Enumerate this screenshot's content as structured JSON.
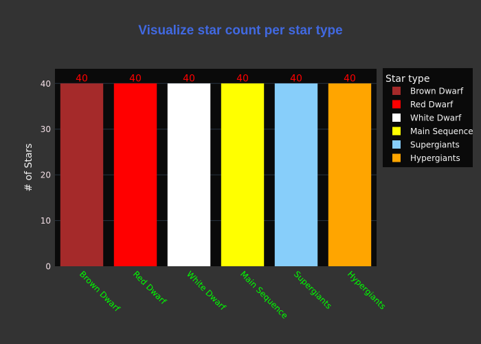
{
  "chart_data": {
    "type": "bar",
    "title": "Visualize star count per star type",
    "xlabel": "",
    "ylabel": "# of Stars",
    "categories": [
      "Brown Dwarf",
      "Red Dwarf",
      "White Dwarf",
      "Main Sequence",
      "Supergiants",
      "Hypergiants"
    ],
    "values": [
      40,
      40,
      40,
      40,
      40,
      40
    ],
    "colors": [
      "#a52a2a",
      "#ff0000",
      "#ffffff",
      "#ffff00",
      "#87cefa",
      "#ffa500"
    ],
    "ylim": [
      0,
      43.2
    ],
    "yticks": [
      0,
      10,
      20,
      30,
      40
    ],
    "grid": true,
    "legend": {
      "title": "Star type",
      "position": "right"
    },
    "style": {
      "title_color": "#4169e1",
      "xtick_color": "#00ff00",
      "ytick_color": "#f2dfe6",
      "data_label_color": "#ff0000",
      "plot_bg": "#0a0a0a",
      "paper_bg": "#333333"
    }
  }
}
